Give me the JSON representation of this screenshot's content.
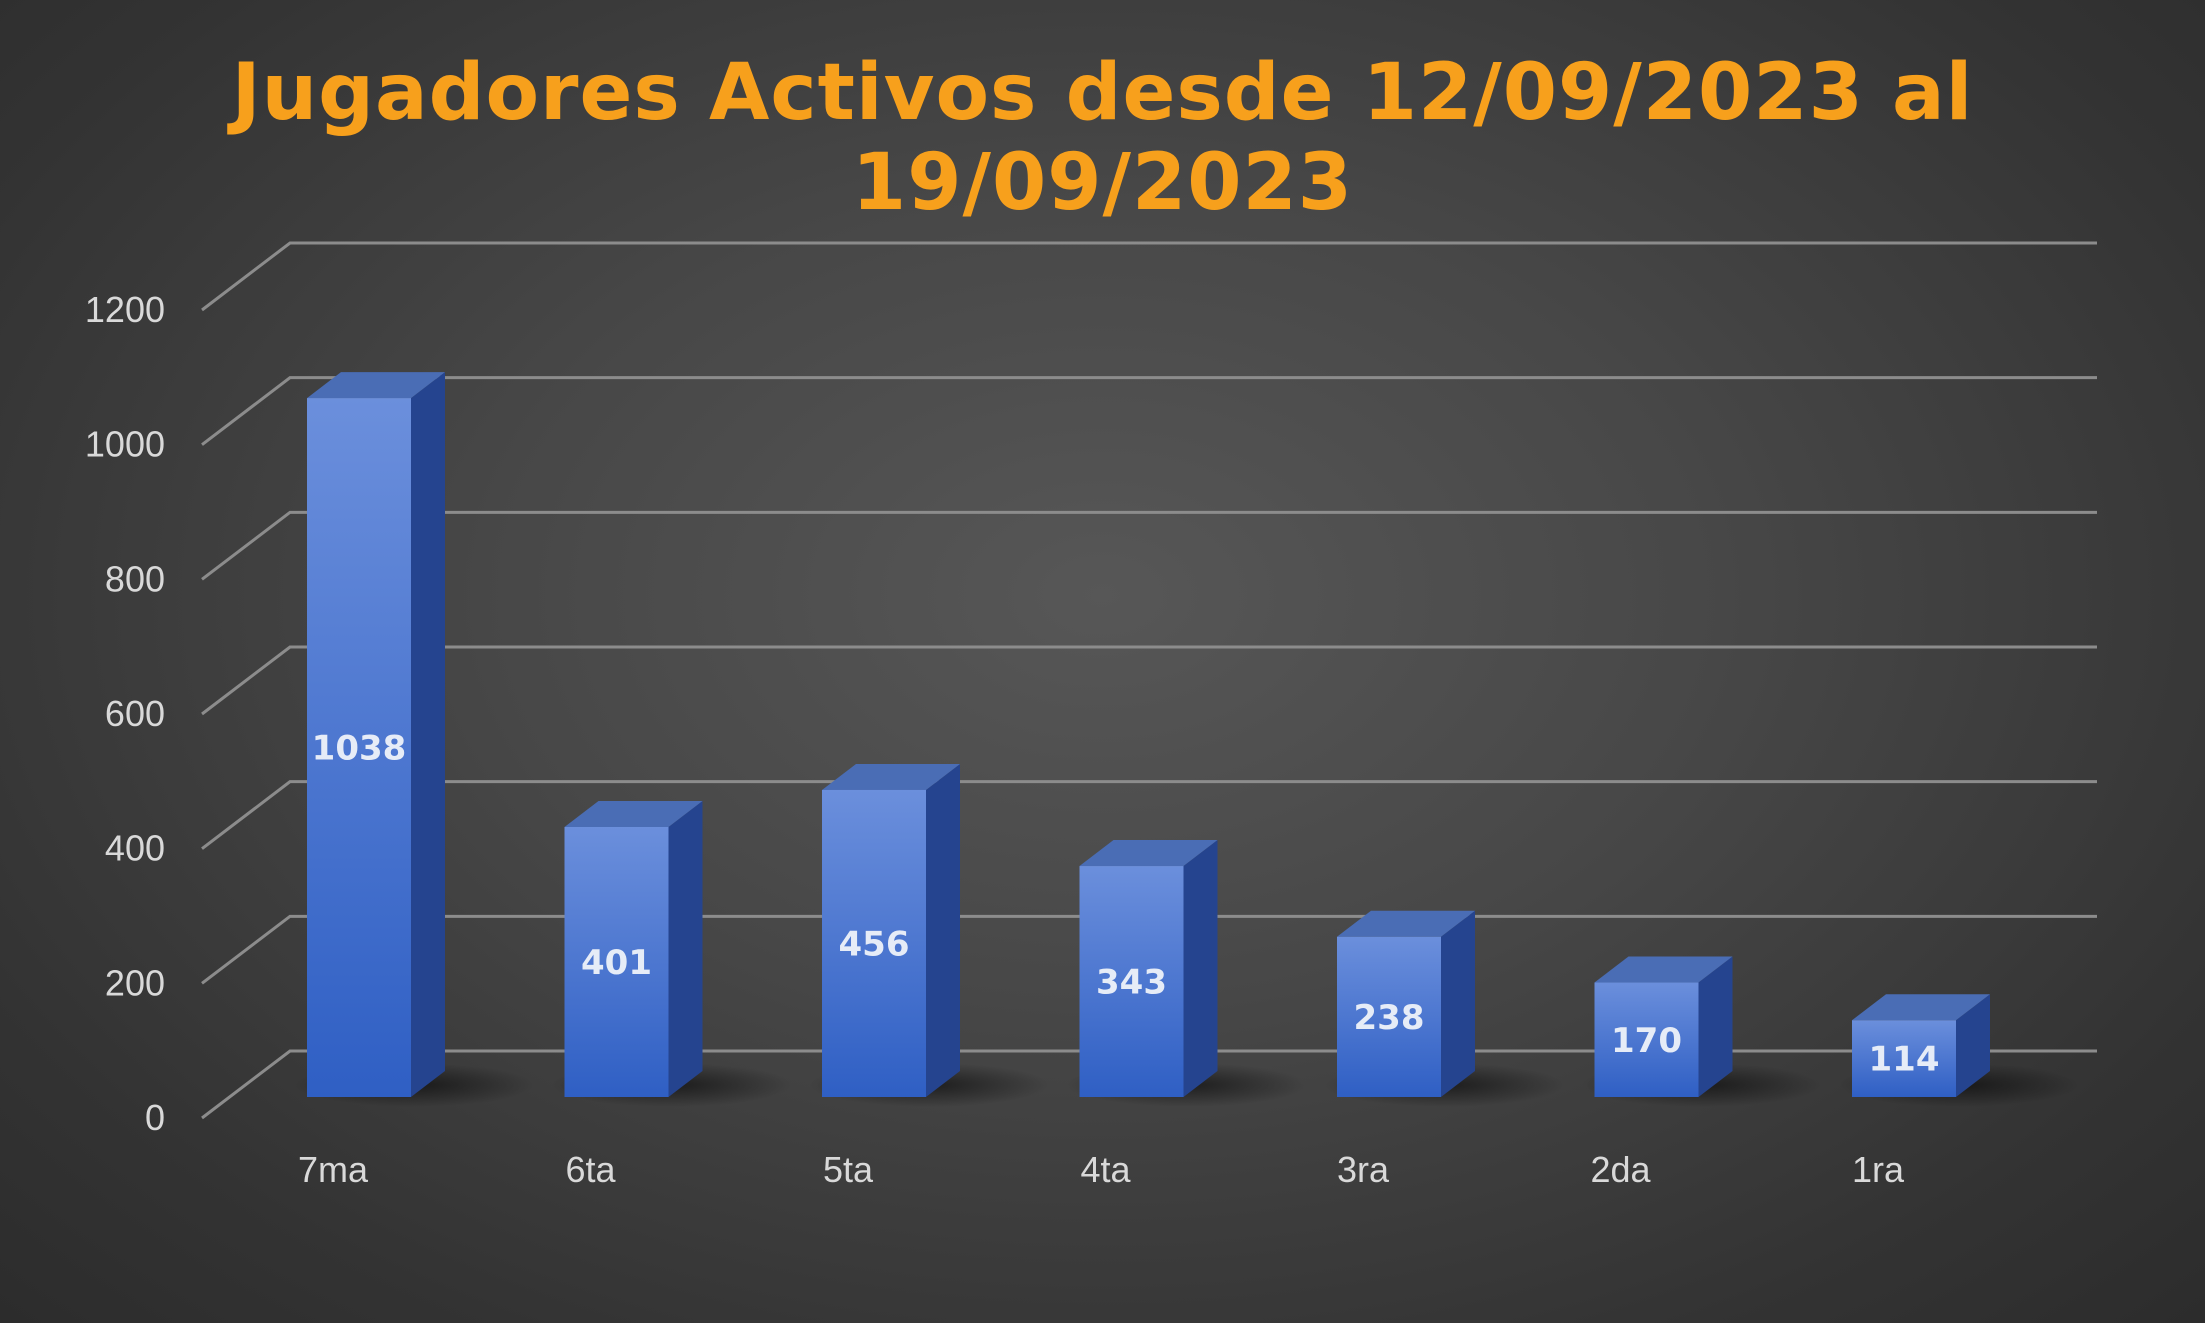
{
  "chart_data": {
    "type": "bar",
    "title": "Jugadores Activos desde 12/09/2023 al 19/09/2023",
    "categories": [
      "7ma",
      "6ta",
      "5ta",
      "4ta",
      "3ra",
      "2da",
      "1ra"
    ],
    "values": [
      1038,
      401,
      456,
      343,
      238,
      170,
      114
    ],
    "data_labels": [
      "1038",
      "401",
      "456",
      "343",
      "238",
      "170",
      "114"
    ],
    "y_ticks": [
      "0",
      "200",
      "400",
      "600",
      "800",
      "1000",
      "1200"
    ],
    "ylim": [
      0,
      1200
    ],
    "grid": true,
    "legend": "none",
    "style": "3d-column"
  },
  "colors": {
    "title": "#f7a01c",
    "bar_front_top": "#6b8fdc",
    "bar_front_bottom": "#2f5fc4",
    "bar_side": "#25448f",
    "bar_top": "#4a6db5",
    "gridline": "#8c8c8c",
    "tick_text": "#d9d9d9",
    "data_label": "#e6ecf7"
  }
}
